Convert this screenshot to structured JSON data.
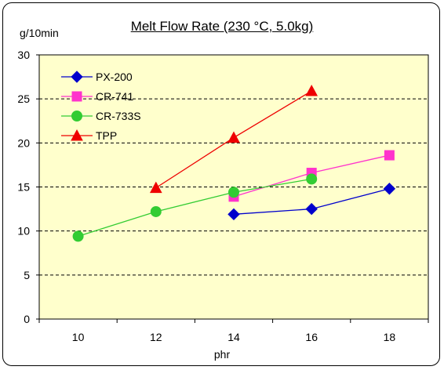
{
  "chart_data": {
    "type": "line",
    "title": "Melt Flow Rate (230 °C, 5.0kg)",
    "ylabel": "g/10min",
    "xlabel": "phr",
    "x": [
      10,
      12,
      14,
      16,
      18
    ],
    "xlim": [
      9,
      19
    ],
    "ylim": [
      0,
      30
    ],
    "yticks": [
      0,
      5,
      10,
      15,
      20,
      25,
      30
    ],
    "grid": "horizontal-dashed",
    "legend_position": "top-left",
    "background_color": "#ffffcc",
    "series": [
      {
        "name": "PX-200",
        "color": "#0000cc",
        "marker": "diamond",
        "points": [
          [
            14,
            11.9
          ],
          [
            16,
            12.5
          ],
          [
            18,
            14.8
          ]
        ]
      },
      {
        "name": "CR-741",
        "color": "#ff33cc",
        "marker": "square",
        "points": [
          [
            14,
            13.9
          ],
          [
            16,
            16.6
          ],
          [
            18,
            18.6
          ]
        ]
      },
      {
        "name": "CR-733S",
        "color": "#33cc33",
        "marker": "circle",
        "points": [
          [
            10,
            9.4
          ],
          [
            12,
            12.2
          ],
          [
            14,
            14.4
          ],
          [
            16,
            15.9
          ]
        ]
      },
      {
        "name": "TPP",
        "color": "#ee0000",
        "marker": "triangle",
        "points": [
          [
            12,
            14.9
          ],
          [
            14,
            20.6
          ],
          [
            16,
            25.9
          ]
        ]
      }
    ]
  }
}
